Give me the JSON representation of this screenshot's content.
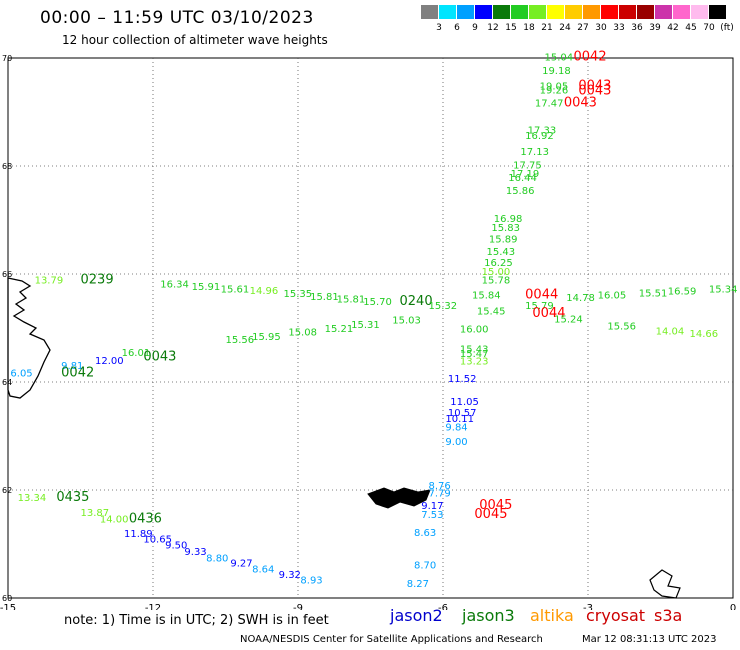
{
  "header": {
    "title": "00:00 – 11:59 UTC 03/10/2023",
    "subtitle": "12 hour collection of altimeter wave heights"
  },
  "colorbar": {
    "colors": [
      "#808080",
      "#00e5ff",
      "#00a0ff",
      "#0000ff",
      "#0a7a0a",
      "#22cc22",
      "#77ee22",
      "#ffff00",
      "#ffcc00",
      "#ff9900",
      "#ff0000",
      "#cc0000",
      "#990000",
      "#cc33aa",
      "#ff66cc",
      "#ffbbee",
      "#000000"
    ],
    "labels": [
      "3",
      "6",
      "9",
      "12",
      "15",
      "18",
      "21",
      "24",
      "27",
      "30",
      "33",
      "36",
      "39",
      "42",
      "45",
      "70",
      "(ft)"
    ]
  },
  "map": {
    "lon_ticks": [
      "-15",
      "-12",
      "-9",
      "-6",
      "-3",
      "0"
    ],
    "lat_ticks": [
      "70",
      "68",
      "66",
      "64",
      "62",
      "60"
    ],
    "lon_range": [
      -15,
      0
    ],
    "lat_range": [
      60,
      70
    ]
  },
  "labels": [
    {
      "t": "15.04",
      "c": "#22cc22",
      "lon": -3.9,
      "lat": 69.95
    },
    {
      "t": "0042",
      "c": "#ff0000",
      "lon": -3.3,
      "lat": 69.95,
      "big": true
    },
    {
      "t": "19.18",
      "c": "#22cc22",
      "lon": -3.95,
      "lat": 69.7
    },
    {
      "t": "19.05",
      "c": "#22cc22",
      "lon": -4.0,
      "lat": 69.42
    },
    {
      "t": "19.26",
      "c": "#22cc22",
      "lon": -4.0,
      "lat": 69.34
    },
    {
      "t": "0043",
      "c": "#ff0000",
      "lon": -3.2,
      "lat": 69.42,
      "big": true
    },
    {
      "t": "0043",
      "c": "#ff0000",
      "lon": -3.2,
      "lat": 69.32,
      "big": true
    },
    {
      "t": "17.47",
      "c": "#22cc22",
      "lon": -4.1,
      "lat": 69.1
    },
    {
      "t": "0043",
      "c": "#ff0000",
      "lon": -3.5,
      "lat": 69.1,
      "big": true
    },
    {
      "t": "17.33",
      "c": "#22cc22",
      "lon": -4.25,
      "lat": 68.6
    },
    {
      "t": "16.92",
      "c": "#22cc22",
      "lon": -4.3,
      "lat": 68.5
    },
    {
      "t": "17.13",
      "c": "#22cc22",
      "lon": -4.4,
      "lat": 68.2
    },
    {
      "t": "17.75",
      "c": "#22cc22",
      "lon": -4.55,
      "lat": 67.95
    },
    {
      "t": "17.19",
      "c": "#22cc22",
      "lon": -4.6,
      "lat": 67.8
    },
    {
      "t": "16.44",
      "c": "#22cc22",
      "lon": -4.65,
      "lat": 67.72
    },
    {
      "t": "15.86",
      "c": "#22cc22",
      "lon": -4.7,
      "lat": 67.48
    },
    {
      "t": "16.98",
      "c": "#22cc22",
      "lon": -4.95,
      "lat": 66.96
    },
    {
      "t": "15.83",
      "c": "#22cc22",
      "lon": -5.0,
      "lat": 66.8
    },
    {
      "t": "15.89",
      "c": "#22cc22",
      "lon": -5.05,
      "lat": 66.58
    },
    {
      "t": "15.43",
      "c": "#22cc22",
      "lon": -5.1,
      "lat": 66.35
    },
    {
      "t": "16.25",
      "c": "#22cc22",
      "lon": -5.15,
      "lat": 66.15
    },
    {
      "t": "15.00",
      "c": "#77ee22",
      "lon": -5.2,
      "lat": 65.98
    },
    {
      "t": "15.78",
      "c": "#22cc22",
      "lon": -5.2,
      "lat": 65.82
    },
    {
      "t": "15.84",
      "c": "#22cc22",
      "lon": -5.4,
      "lat": 65.55
    },
    {
      "t": "0044",
      "c": "#ff0000",
      "lon": -4.3,
      "lat": 65.55,
      "big": true
    },
    {
      "t": "15.79",
      "c": "#22cc22",
      "lon": -4.3,
      "lat": 65.35
    },
    {
      "t": "0044",
      "c": "#ff0000",
      "lon": -4.15,
      "lat": 65.2,
      "big": true
    },
    {
      "t": "15.45",
      "c": "#22cc22",
      "lon": -5.3,
      "lat": 65.25
    },
    {
      "t": "16.00",
      "c": "#22cc22",
      "lon": -5.65,
      "lat": 64.92
    },
    {
      "t": "15.43",
      "c": "#22cc22",
      "lon": -5.65,
      "lat": 64.55
    },
    {
      "t": "15.47",
      "c": "#22cc22",
      "lon": -5.65,
      "lat": 64.46
    },
    {
      "t": "13.23",
      "c": "#77ee22",
      "lon": -5.65,
      "lat": 64.32
    },
    {
      "t": "13.79",
      "c": "#77ee22",
      "lon": -14.45,
      "lat": 65.82
    },
    {
      "t": "0239",
      "c": "#0a7a0a",
      "lon": -13.5,
      "lat": 65.82,
      "big": true
    },
    {
      "t": "16.34",
      "c": "#22cc22",
      "lon": -11.85,
      "lat": 65.75
    },
    {
      "t": "15.91",
      "c": "#22cc22",
      "lon": -11.2,
      "lat": 65.7
    },
    {
      "t": "15.61",
      "c": "#22cc22",
      "lon": -10.6,
      "lat": 65.66
    },
    {
      "t": "14.96",
      "c": "#77ee22",
      "lon": -10.0,
      "lat": 65.63
    },
    {
      "t": "15.35",
      "c": "#22cc22",
      "lon": -9.3,
      "lat": 65.57
    },
    {
      "t": "15.81",
      "c": "#22cc22",
      "lon": -8.75,
      "lat": 65.52
    },
    {
      "t": "15.81",
      "c": "#22cc22",
      "lon": -8.2,
      "lat": 65.47
    },
    {
      "t": "15.70",
      "c": "#22cc22",
      "lon": -7.65,
      "lat": 65.43
    },
    {
      "t": "0240",
      "c": "#0a7a0a",
      "lon": -6.9,
      "lat": 65.43,
      "big": true
    },
    {
      "t": "15.32",
      "c": "#22cc22",
      "lon": -6.3,
      "lat": 65.35
    },
    {
      "t": "15.03",
      "c": "#22cc22",
      "lon": -7.05,
      "lat": 65.08
    },
    {
      "t": "15.31",
      "c": "#22cc22",
      "lon": -7.9,
      "lat": 65.0
    },
    {
      "t": "15.21",
      "c": "#22cc22",
      "lon": -8.45,
      "lat": 64.93
    },
    {
      "t": "15.08",
      "c": "#22cc22",
      "lon": -9.2,
      "lat": 64.86
    },
    {
      "t": "15.95",
      "c": "#22cc22",
      "lon": -9.95,
      "lat": 64.78
    },
    {
      "t": "15.56",
      "c": "#22cc22",
      "lon": -10.5,
      "lat": 64.72
    },
    {
      "t": "16.01",
      "c": "#22cc22",
      "lon": -12.65,
      "lat": 64.48
    },
    {
      "t": "0043",
      "c": "#0a7a0a",
      "lon": -12.2,
      "lat": 64.4,
      "big": true
    },
    {
      "t": "12.00",
      "c": "#0000ff",
      "lon": -13.2,
      "lat": 64.33
    },
    {
      "t": "9.81",
      "c": "#00a0ff",
      "lon": -13.9,
      "lat": 64.24
    },
    {
      "t": "6.05",
      "c": "#00a0ff",
      "lon": -14.95,
      "lat": 64.1
    },
    {
      "t": "0042",
      "c": "#0a7a0a",
      "lon": -13.9,
      "lat": 64.1,
      "big": true
    },
    {
      "t": "14.78",
      "c": "#22cc22",
      "lon": -3.45,
      "lat": 65.5
    },
    {
      "t": "16.05",
      "c": "#22cc22",
      "lon": -2.8,
      "lat": 65.55
    },
    {
      "t": "15.51",
      "c": "#22cc22",
      "lon": -1.95,
      "lat": 65.58
    },
    {
      "t": "16.59",
      "c": "#22cc22",
      "lon": -1.35,
      "lat": 65.62
    },
    {
      "t": "15.34",
      "c": "#22cc22",
      "lon": -0.5,
      "lat": 65.66
    },
    {
      "t": "15.24",
      "c": "#22cc22",
      "lon": -3.7,
      "lat": 65.1
    },
    {
      "t": "15.56",
      "c": "#22cc22",
      "lon": -2.6,
      "lat": 64.97
    },
    {
      "t": "14.04",
      "c": "#77ee22",
      "lon": -1.6,
      "lat": 64.88
    },
    {
      "t": "14.66",
      "c": "#77ee22",
      "lon": -0.9,
      "lat": 64.83
    },
    {
      "t": "11.52",
      "c": "#0000ff",
      "lon": -5.9,
      "lat": 64.0
    },
    {
      "t": "11.05",
      "c": "#0000ff",
      "lon": -5.85,
      "lat": 63.57
    },
    {
      "t": "10.57",
      "c": "#0000ff",
      "lon": -5.9,
      "lat": 63.37
    },
    {
      "t": "10.11",
      "c": "#0000ff",
      "lon": -5.95,
      "lat": 63.26
    },
    {
      "t": "9.84",
      "c": "#00a0ff",
      "lon": -5.95,
      "lat": 63.1
    },
    {
      "t": "9.00",
      "c": "#00a0ff",
      "lon": -5.95,
      "lat": 62.83
    },
    {
      "t": "8.76",
      "c": "#00a0ff",
      "lon": -6.3,
      "lat": 62.02
    },
    {
      "t": "7.79",
      "c": "#00a0ff",
      "lon": -6.3,
      "lat": 61.88
    },
    {
      "t": "9.17",
      "c": "#0000ff",
      "lon": -6.45,
      "lat": 61.65
    },
    {
      "t": "0045",
      "c": "#ff0000",
      "lon": -5.25,
      "lat": 61.65,
      "big": true
    },
    {
      "t": "7.53",
      "c": "#00a0ff",
      "lon": -6.45,
      "lat": 61.48
    },
    {
      "t": "0045",
      "c": "#ff0000",
      "lon": -5.35,
      "lat": 61.48,
      "big": true
    },
    {
      "t": "8.63",
      "c": "#00a0ff",
      "lon": -6.6,
      "lat": 61.15
    },
    {
      "t": "8.70",
      "c": "#00a0ff",
      "lon": -6.6,
      "lat": 60.55
    },
    {
      "t": "8.27",
      "c": "#00a0ff",
      "lon": -6.75,
      "lat": 60.2
    },
    {
      "t": "13.34",
      "c": "#77ee22",
      "lon": -14.8,
      "lat": 61.8
    },
    {
      "t": "0435",
      "c": "#0a7a0a",
      "lon": -14.0,
      "lat": 61.8,
      "big": true
    },
    {
      "t": "13.87",
      "c": "#77ee22",
      "lon": -13.5,
      "lat": 61.52
    },
    {
      "t": "14.00",
      "c": "#77ee22",
      "lon": -13.1,
      "lat": 61.4
    },
    {
      "t": "0436",
      "c": "#0a7a0a",
      "lon": -12.5,
      "lat": 61.4,
      "big": true
    },
    {
      "t": "11.89",
      "c": "#0000ff",
      "lon": -12.6,
      "lat": 61.13
    },
    {
      "t": "10.65",
      "c": "#0000ff",
      "lon": -12.2,
      "lat": 61.03
    },
    {
      "t": "9.50",
      "c": "#0000ff",
      "lon": -11.75,
      "lat": 60.92
    },
    {
      "t": "9.33",
      "c": "#0000ff",
      "lon": -11.35,
      "lat": 60.8
    },
    {
      "t": "8.80",
      "c": "#00a0ff",
      "lon": -10.9,
      "lat": 60.68
    },
    {
      "t": "9.27",
      "c": "#0000ff",
      "lon": -10.4,
      "lat": 60.58
    },
    {
      "t": "8.64",
      "c": "#00a0ff",
      "lon": -9.95,
      "lat": 60.47
    },
    {
      "t": "9.32",
      "c": "#0000ff",
      "lon": -9.4,
      "lat": 60.37
    },
    {
      "t": "8.93",
      "c": "#00a0ff",
      "lon": -8.95,
      "lat": 60.27
    }
  ],
  "footer": {
    "note": "note: 1) Time is in UTC; 2) SWH is in feet",
    "satellites": [
      {
        "name": "jason2",
        "color": "#0000cc"
      },
      {
        "name": "jason3",
        "color": "#0a7a0a"
      },
      {
        "name": "altika",
        "color": "#ff9900"
      },
      {
        "name": "cryosat",
        "color": "#cc0000"
      },
      {
        "name": "s3a",
        "color": "#cc0000"
      }
    ],
    "credit": "NOAA/NESDIS Center for Satellite Applications and Research",
    "stamp": "Mar 12 08:31:13 UTC 2023"
  }
}
